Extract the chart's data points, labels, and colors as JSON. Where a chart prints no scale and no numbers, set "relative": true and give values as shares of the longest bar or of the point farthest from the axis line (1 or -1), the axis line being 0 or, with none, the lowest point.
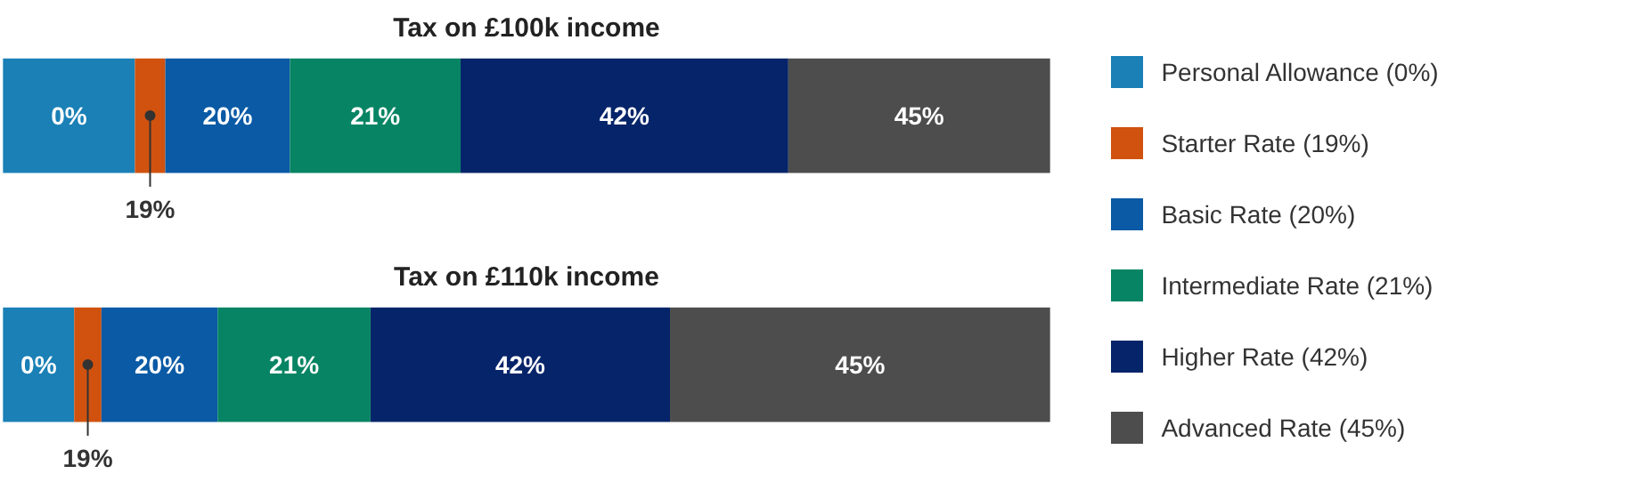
{
  "chart_data": [
    {
      "type": "bar",
      "title": "Tax on £100k income",
      "orientation": "horizontal",
      "stacked": true,
      "relative": true,
      "categories": [
        null
      ],
      "legend": "right",
      "series": [
        {
          "name": "Personal Allowance (0%)",
          "color": "#1a80b6",
          "values": [
            0.126
          ]
        },
        {
          "name": "Starter Rate (19%)",
          "color": "#d0520e",
          "values": [
            0.029
          ]
        },
        {
          "name": "Basic Rate (20%)",
          "color": "#0a5aa5",
          "values": [
            0.119
          ]
        },
        {
          "name": "Intermediate Rate (21%)",
          "color": "#068463",
          "values": [
            0.163
          ]
        },
        {
          "name": "Higher Rate (42%)",
          "color": "#062469",
          "values": [
            0.313
          ]
        },
        {
          "name": "Advanced Rate (45%)",
          "color": "#4d4d4d",
          "values": [
            0.25
          ]
        }
      ],
      "annotations": [
        "0%",
        "19%",
        "20%",
        "21%",
        "42%",
        "45%"
      ]
    },
    {
      "type": "bar",
      "title": "Tax on £110k income",
      "orientation": "horizontal",
      "stacked": true,
      "relative": true,
      "categories": [
        null
      ],
      "series": [
        {
          "color": "#1a80b6",
          "values": [
            0.068
          ]
        },
        {
          "color": "#d0520e",
          "values": [
            0.026
          ]
        },
        {
          "color": "#0a5aa5",
          "values": [
            0.111
          ]
        },
        {
          "color": "#068463",
          "values": [
            0.146
          ]
        },
        {
          "color": "#062469",
          "values": [
            0.286
          ]
        },
        {
          "color": "#4d4d4d",
          "values": [
            0.363
          ]
        }
      ],
      "annotations": [
        "0%",
        "19%",
        "20%",
        "21%",
        "42%",
        "45%"
      ]
    }
  ]
}
